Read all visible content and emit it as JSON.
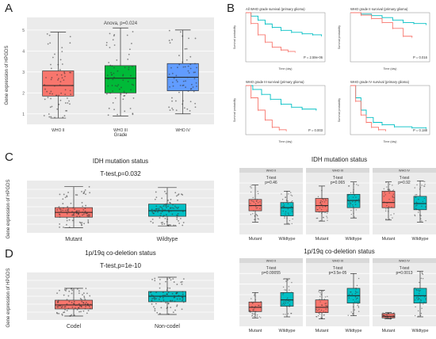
{
  "panels": {
    "A": "A",
    "B": "B",
    "C": "C",
    "D": "D"
  },
  "palette": {
    "red": "#f8766d",
    "green": "#00ba38",
    "blue": "#619cff",
    "teal": "#00bfc4",
    "panel_bg": "#ebebeb",
    "strip_bg": "#d9d9d9",
    "grid": "#ffffff"
  },
  "chart_data": [
    {
      "id": "A",
      "type": "box",
      "annotation": "Anova, p=0.024",
      "ylabel": "Gene expression of HPGDS",
      "xlabel": "Grade",
      "categories": [
        "WHO II",
        "WHO III",
        "WHO IV"
      ],
      "ylim": [
        0.5,
        5.6
      ],
      "yticks": [
        1,
        2,
        3,
        4,
        5
      ],
      "boxes": [
        {
          "min": 0.8,
          "q1": 1.85,
          "median": 2.35,
          "q3": 3.05,
          "max": 4.9,
          "color": "#f8766d"
        },
        {
          "min": 0.9,
          "q1": 2.0,
          "median": 2.7,
          "q3": 3.3,
          "max": 5.1,
          "color": "#00ba38"
        },
        {
          "min": 1.0,
          "q1": 2.1,
          "median": 2.75,
          "q3": 3.4,
          "max": 5.0,
          "color": "#619cff"
        }
      ]
    },
    {
      "id": "B",
      "type": "line",
      "subplots": [
        {
          "title": "All WHO grade survival (primary glioma)",
          "pval": "P = 2.59e-06",
          "xlabel": "Time (day)",
          "ylabel": "Survival probability",
          "xlim": [
            0,
            4500
          ],
          "ylim": [
            0,
            1
          ],
          "series": [
            {
              "color": "#00bfc4",
              "x": [
                0,
                300,
                700,
                1100,
                1500,
                2000,
                2600,
                3200,
                3800,
                4300
              ],
              "y": [
                1,
                0.93,
                0.85,
                0.77,
                0.7,
                0.64,
                0.6,
                0.57,
                0.55,
                0.53
              ]
            },
            {
              "color": "#f8766d",
              "x": [
                0,
                300,
                700,
                1100,
                1500,
                2000,
                2400,
                2800
              ],
              "y": [
                1,
                0.78,
                0.55,
                0.4,
                0.3,
                0.24,
                0.21,
                0.2
              ]
            }
          ]
        },
        {
          "title": "WHO grade II survival (primary glioma)",
          "pval": "P = 0.016",
          "xlabel": "Time (day)",
          "ylabel": "Survival probability",
          "xlim": [
            0,
            4500
          ],
          "ylim": [
            0,
            1
          ],
          "series": [
            {
              "color": "#00bfc4",
              "x": [
                0,
                600,
                1200,
                1800,
                2400,
                3000,
                3600,
                4300
              ],
              "y": [
                1,
                0.97,
                0.94,
                0.9,
                0.85,
                0.8,
                0.78,
                0.76
              ]
            },
            {
              "color": "#f8766d",
              "x": [
                0,
                600,
                1200,
                1800,
                2400,
                3000,
                3500
              ],
              "y": [
                1,
                0.95,
                0.88,
                0.8,
                0.68,
                0.52,
                0.5
              ]
            }
          ]
        },
        {
          "title": "WHO grade III survival (primary glioma)",
          "pval": "P = 0.003",
          "xlabel": "Time (day)",
          "ylabel": "Survival probability",
          "xlim": [
            0,
            4500
          ],
          "ylim": [
            0,
            1
          ],
          "series": [
            {
              "color": "#00bfc4",
              "x": [
                0,
                400,
                900,
                1400,
                2000,
                2600,
                3200,
                4000
              ],
              "y": [
                1,
                0.92,
                0.82,
                0.72,
                0.62,
                0.56,
                0.52,
                0.5
              ]
            },
            {
              "color": "#f8766d",
              "x": [
                0,
                300,
                700,
                1100,
                1500,
                1900,
                2300
              ],
              "y": [
                1,
                0.75,
                0.5,
                0.3,
                0.15,
                0.1,
                0.08
              ]
            }
          ]
        },
        {
          "title": "WHO grade IV survival (primary glioma)",
          "pval": "P = 0.188",
          "xlabel": "Time (day)",
          "ylabel": "Survival probability",
          "xlim": [
            0,
            4500
          ],
          "ylim": [
            0,
            1
          ],
          "series": [
            {
              "color": "#00bfc4",
              "x": [
                0,
                300,
                600,
                900,
                1300,
                1800,
                2500,
                3500,
                4300
              ],
              "y": [
                1,
                0.75,
                0.5,
                0.35,
                0.25,
                0.2,
                0.16,
                0.14,
                0.13
              ]
            },
            {
              "color": "#f8766d",
              "x": [
                0,
                300,
                600,
                900,
                1200,
                1600,
                2000
              ],
              "y": [
                1,
                0.68,
                0.4,
                0.25,
                0.15,
                0.1,
                0.08
              ]
            }
          ]
        }
      ]
    },
    {
      "id": "C",
      "type": "box",
      "title": "IDH mutation status",
      "annotation": "T-test,p=0.032",
      "ylabel": "Gene expression of HPGDS",
      "categories": [
        "Mutant",
        "Wildtype"
      ],
      "ylim": [
        0,
        6
      ],
      "boxes": [
        {
          "min": 0.6,
          "q1": 1.8,
          "median": 2.35,
          "q3": 2.9,
          "max": 5.3,
          "color": "#f8766d"
        },
        {
          "min": 0.8,
          "q1": 1.9,
          "median": 2.55,
          "q3": 3.3,
          "max": 5.2,
          "color": "#00bfc4"
        }
      ]
    },
    {
      "id": "C-right",
      "type": "box",
      "title": "IDH mutation status",
      "facets": [
        {
          "strip": "WHO II",
          "test": "T-test",
          "pval": "p=0.46",
          "categories": [
            "Mutant",
            "Wildtype"
          ],
          "boxes": [
            {
              "min": 1.2,
              "q1": 2.3,
              "median": 2.8,
              "q3": 3.4,
              "max": 4.8,
              "color": "#f8766d"
            },
            {
              "min": 1.0,
              "q1": 1.8,
              "median": 2.6,
              "q3": 3.1,
              "max": 4.2,
              "color": "#00bfc4"
            }
          ]
        },
        {
          "strip": "WHO III",
          "test": "T-test",
          "pval": "p=0.065",
          "categories": [
            "Mutant",
            "Wildtype"
          ],
          "boxes": [
            {
              "min": 1.3,
              "q1": 2.2,
              "median": 2.8,
              "q3": 3.5,
              "max": 4.7,
              "color": "#f8766d"
            },
            {
              "min": 1.6,
              "q1": 2.6,
              "median": 3.3,
              "q3": 3.9,
              "max": 5.1,
              "color": "#00bfc4"
            }
          ]
        },
        {
          "strip": "WHO IV",
          "test": "T-test",
          "pval": "p=0.92",
          "categories": [
            "Mutant",
            "Wildtype"
          ],
          "boxes": [
            {
              "min": 1.4,
              "q1": 2.6,
              "median": 3.1,
              "q3": 4.2,
              "max": 5.1,
              "color": "#f8766d"
            },
            {
              "min": 1.2,
              "q1": 2.4,
              "median": 3.0,
              "q3": 3.7,
              "max": 5.2,
              "color": "#00bfc4"
            }
          ]
        }
      ],
      "ylim": [
        0,
        6
      ]
    },
    {
      "id": "D",
      "type": "box",
      "title": "1p/19q co-deletion status",
      "annotation": "T-test,p=1e-10",
      "ylabel": "Gene expression of HPGDS",
      "categories": [
        "Codel",
        "Non-codel"
      ],
      "ylim": [
        0,
        6
      ],
      "boxes": [
        {
          "min": 0.5,
          "q1": 1.4,
          "median": 1.9,
          "q3": 2.5,
          "max": 4.0,
          "color": "#f8766d"
        },
        {
          "min": 0.7,
          "q1": 2.3,
          "median": 3.0,
          "q3": 3.6,
          "max": 5.4,
          "color": "#00bfc4"
        }
      ]
    },
    {
      "id": "D-right",
      "type": "box",
      "title": "1p/19q co-deletion status",
      "facets": [
        {
          "strip": "WHO II",
          "test": "T-test",
          "pval": "p=0.00055",
          "categories": [
            "Mutant",
            "Wildtype"
          ],
          "boxes": [
            {
              "min": 0.8,
              "q1": 1.4,
              "median": 1.8,
              "q3": 2.3,
              "max": 3.2,
              "color": "#f8766d"
            },
            {
              "min": 0.9,
              "q1": 1.9,
              "median": 2.5,
              "q3": 3.2,
              "max": 4.5,
              "color": "#00bfc4"
            }
          ]
        },
        {
          "strip": "WHO III",
          "test": "T-test",
          "pval": "p=3.5e-05",
          "categories": [
            "Mutant",
            "Wildtype"
          ],
          "boxes": [
            {
              "min": 0.7,
              "q1": 1.3,
              "median": 1.8,
              "q3": 2.5,
              "max": 3.4,
              "color": "#f8766d"
            },
            {
              "min": 1.0,
              "q1": 2.2,
              "median": 2.9,
              "q3": 3.6,
              "max": 5.0,
              "color": "#00bfc4"
            }
          ]
        },
        {
          "strip": "WHO IV",
          "test": "T-test",
          "pval": "p=0.0013",
          "categories": [
            "Mutant",
            "Wildtype"
          ],
          "boxes": [
            {
              "min": 0.7,
              "q1": 0.8,
              "median": 0.95,
              "q3": 1.2,
              "max": 1.3,
              "color": "#f8766d"
            },
            {
              "min": 0.9,
              "q1": 2.2,
              "median": 2.9,
              "q3": 3.6,
              "max": 5.2,
              "color": "#00bfc4"
            }
          ]
        }
      ],
      "ylim": [
        0,
        6
      ]
    }
  ]
}
